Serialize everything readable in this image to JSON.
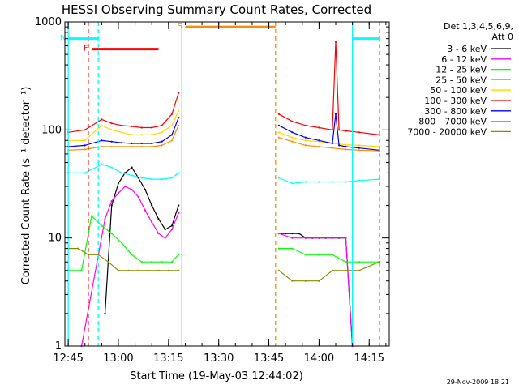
{
  "chart_data": {
    "type": "line",
    "title": "HESSI Observing Summary Count Rates, Corrected",
    "xlabel": "Start Time (19-May-03 12:44:02)",
    "ylabel": "Corrected Count Rate (s⁻¹ detector⁻¹)",
    "y_scale": "log",
    "ylim": [
      1,
      1000
    ],
    "xlim": [
      "12:44",
      "14:21"
    ],
    "x_ticks": [
      "12:45",
      "13:00",
      "13:15",
      "13:30",
      "13:45",
      "14:00",
      "14:15"
    ],
    "y_ticks": [
      "1",
      "10",
      "100",
      "1000"
    ],
    "legend_title": [
      "Det 1,3,4,5,6,9,",
      "Att 0"
    ],
    "legend_placement": "right",
    "timestamp": "29-Nov-2009 18:21",
    "gap": [
      "13:19",
      "13:48"
    ],
    "series": [
      {
        "name": "3 - 6 keV",
        "color": "#000000",
        "x": [
          "12:56",
          "12:58",
          "13:00",
          "13:02",
          "13:04",
          "13:06",
          "13:08",
          "13:10",
          "13:12",
          "13:14",
          "13:16",
          "13:18",
          "13:48",
          "13:50",
          "13:52",
          "13:54",
          "13:56",
          "13:58",
          "14:00",
          "14:02",
          "14:04",
          "14:06",
          "14:08",
          "14:10"
        ],
        "y": [
          2,
          20,
          32,
          40,
          45,
          36,
          28,
          20,
          15,
          12,
          13,
          20,
          11,
          11,
          11,
          11,
          10,
          10,
          10,
          10,
          10,
          10,
          10,
          1
        ]
      },
      {
        "name": "6 - 12 keV",
        "color": "#ff00ff",
        "x": [
          "12:49",
          "12:56",
          "12:58",
          "13:00",
          "13:02",
          "13:04",
          "13:06",
          "13:08",
          "13:10",
          "13:12",
          "13:14",
          "13:16",
          "13:18",
          "13:48",
          "13:52",
          "13:56",
          "14:00",
          "14:04",
          "14:08",
          "14:10"
        ],
        "y": [
          1,
          15,
          22,
          26,
          30,
          28,
          24,
          18,
          14,
          11,
          10,
          12,
          17,
          11,
          10,
          10,
          10,
          10,
          10,
          1
        ]
      },
      {
        "name": "12 - 25 keV",
        "color": "#00ff00",
        "x": [
          "12:45",
          "12:49",
          "12:52",
          "12:55",
          "12:58",
          "13:01",
          "13:04",
          "13:07",
          "13:10",
          "13:13",
          "13:16",
          "13:18",
          "13:48",
          "13:52",
          "13:56",
          "14:00",
          "14:04",
          "14:08",
          "14:12",
          "14:18"
        ],
        "y": [
          5,
          5,
          16,
          13,
          11,
          9,
          7,
          6,
          6,
          6,
          6,
          7,
          8,
          8,
          7,
          7,
          7,
          6,
          6,
          6
        ]
      },
      {
        "name": "25 - 50 keV",
        "color": "#00ffff",
        "x": [
          "12:45",
          "12:50",
          "12:55",
          "12:58",
          "13:01",
          "13:04",
          "13:07",
          "13:10",
          "13:13",
          "13:16",
          "13:18",
          "13:48",
          "13:52",
          "13:56",
          "14:00",
          "14:04",
          "14:08",
          "14:12",
          "14:18"
        ],
        "y": [
          40,
          40,
          48,
          45,
          40,
          38,
          36,
          35,
          35,
          36,
          40,
          36,
          32,
          33,
          33,
          33,
          33,
          34,
          35
        ]
      },
      {
        "name": "50 - 100 keV",
        "color": "#ffd700",
        "x": [
          "12:45",
          "12:50",
          "12:55",
          "12:58",
          "13:01",
          "13:04",
          "13:07",
          "13:10",
          "13:13",
          "13:16",
          "13:18",
          "13:48",
          "13:52",
          "13:56",
          "14:00",
          "14:04",
          "14:08",
          "14:12",
          "14:18"
        ],
        "y": [
          80,
          80,
          110,
          100,
          95,
          90,
          90,
          90,
          95,
          110,
          150,
          95,
          85,
          80,
          78,
          75,
          73,
          72,
          70
        ]
      },
      {
        "name": "100 - 300 keV",
        "color": "#ff0000",
        "x": [
          "12:45",
          "12:50",
          "12:55",
          "12:58",
          "13:01",
          "13:04",
          "13:07",
          "13:10",
          "13:13",
          "13:16",
          "13:18",
          "13:48",
          "13:52",
          "13:56",
          "14:00",
          "14:04",
          "14:05",
          "14:06",
          "14:08",
          "14:12",
          "14:18"
        ],
        "y": [
          95,
          100,
          125,
          115,
          110,
          108,
          105,
          105,
          110,
          140,
          220,
          140,
          120,
          110,
          105,
          100,
          650,
          100,
          98,
          95,
          90
        ]
      },
      {
        "name": "300 - 800 keV",
        "color": "#0000ff",
        "x": [
          "12:45",
          "12:50",
          "12:55",
          "12:58",
          "13:01",
          "13:04",
          "13:07",
          "13:10",
          "13:13",
          "13:16",
          "13:18",
          "13:48",
          "13:52",
          "13:56",
          "14:00",
          "14:04",
          "14:05",
          "14:06",
          "14:08",
          "14:12",
          "14:18"
        ],
        "y": [
          70,
          72,
          80,
          78,
          76,
          75,
          75,
          75,
          78,
          90,
          130,
          110,
          95,
          85,
          80,
          75,
          140,
          72,
          70,
          68,
          65
        ]
      },
      {
        "name": "800 - 7000 keV",
        "color": "#ff8c00",
        "x": [
          "12:45",
          "12:50",
          "12:55",
          "12:58",
          "13:01",
          "13:04",
          "13:07",
          "13:10",
          "13:13",
          "13:16",
          "13:18",
          "13:48",
          "13:52",
          "13:56",
          "14:00",
          "14:04",
          "14:08",
          "14:12",
          "14:18"
        ],
        "y": [
          65,
          66,
          70,
          70,
          70,
          70,
          70,
          70,
          72,
          80,
          110,
          85,
          78,
          72,
          70,
          68,
          66,
          65,
          64
        ]
      },
      {
        "name": "7000 - 20000 keV",
        "color": "#8b8b00",
        "x": [
          "12:45",
          "12:48",
          "12:51",
          "12:54",
          "12:57",
          "13:00",
          "13:03",
          "13:06",
          "13:09",
          "13:12",
          "13:15",
          "13:18",
          "13:48",
          "13:52",
          "13:56",
          "14:00",
          "14:04",
          "14:08",
          "14:12",
          "14:18"
        ],
        "y": [
          8,
          8,
          7,
          7,
          6,
          5,
          5,
          5,
          5,
          5,
          5,
          5,
          5,
          4,
          4,
          4,
          5,
          5,
          5,
          6
        ]
      }
    ],
    "flags": [
      {
        "label": "N",
        "color": "#00ffff",
        "segments": [
          [
            "12:45",
            "12:54"
          ],
          [
            "14:10",
            "14:18"
          ]
        ],
        "y": 700
      },
      {
        "label": "F",
        "color": "#ff0000",
        "segments": [
          [
            "12:52",
            "13:12"
          ]
        ],
        "y": 560
      },
      {
        "label": "S",
        "color": "#ff8c00",
        "segments": [
          [
            "13:20",
            "13:47"
          ]
        ],
        "y": 900
      }
    ],
    "vlines": [
      {
        "x": "12:45",
        "color": "#00ffff",
        "style": "solid"
      },
      {
        "x": "12:54",
        "color": "#00ffff",
        "style": "dashed"
      },
      {
        "x": "14:10",
        "color": "#00ffff",
        "style": "solid"
      },
      {
        "x": "14:18",
        "color": "#00ffff",
        "style": "dashed"
      },
      {
        "x": "13:19",
        "color": "#ff8c00",
        "style": "solid"
      },
      {
        "x": "13:47",
        "color": "#ff8c00",
        "style": "dashed"
      },
      {
        "x": "12:51",
        "color": "#ff0000",
        "style": "dashed"
      }
    ]
  }
}
